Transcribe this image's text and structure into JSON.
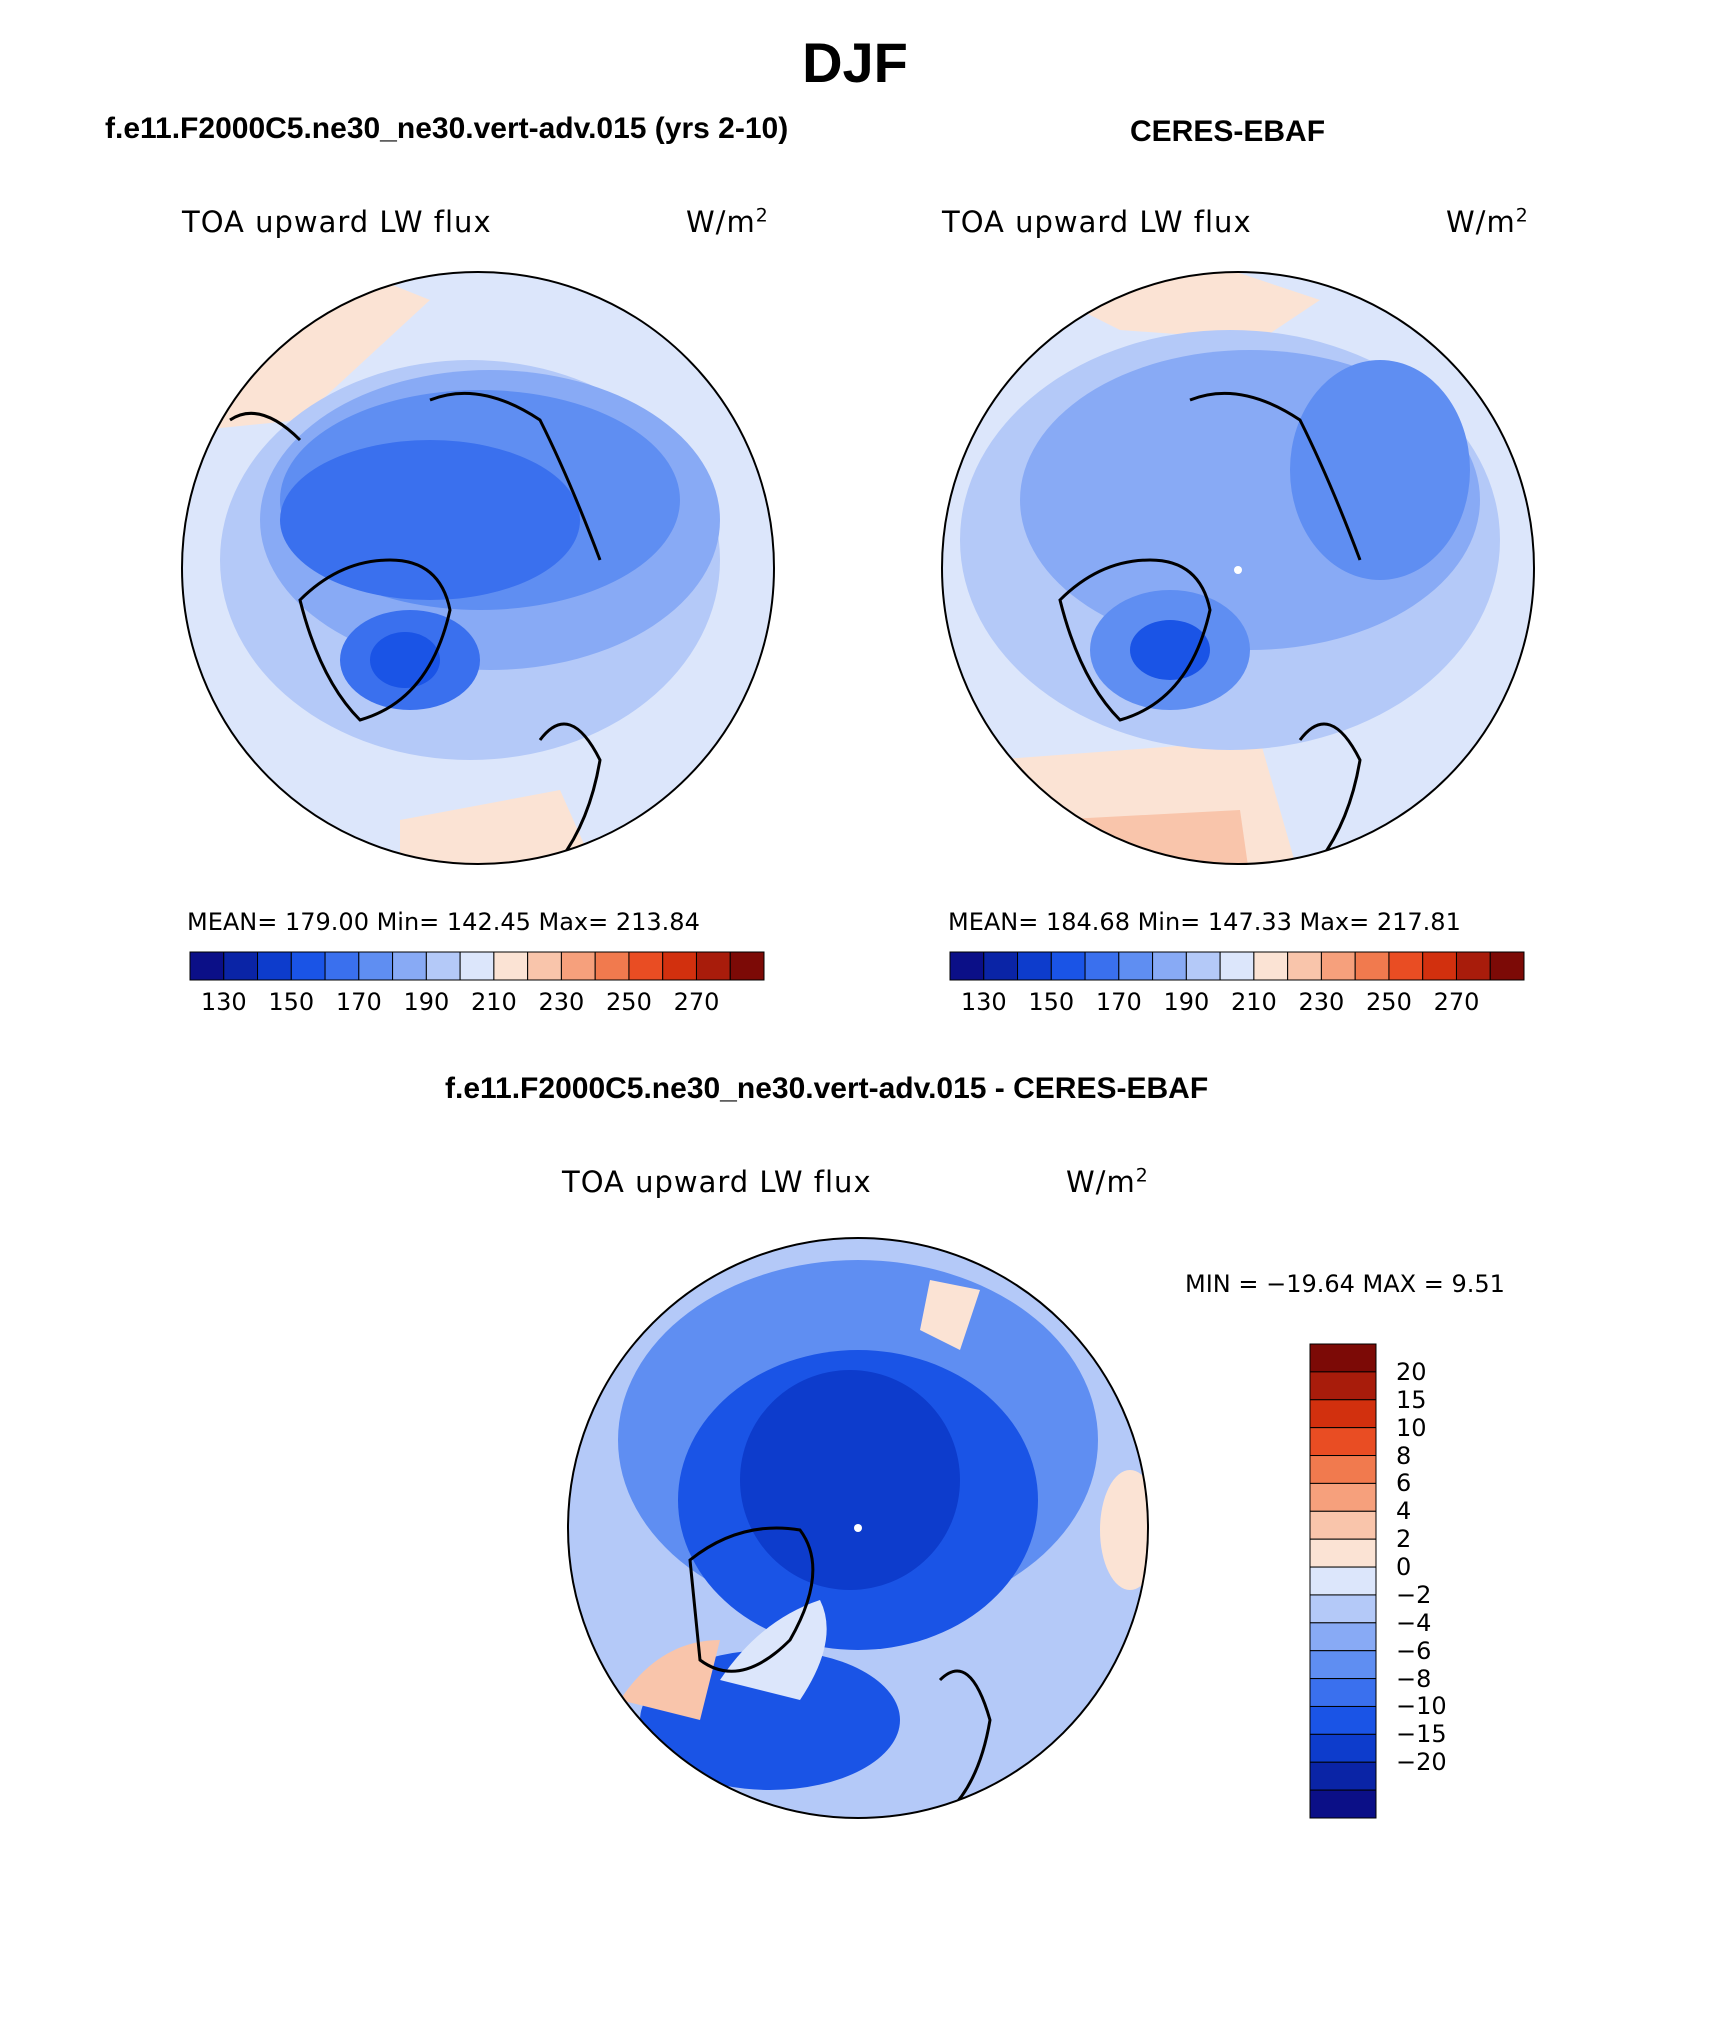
{
  "figure": {
    "title": "DJF"
  },
  "colors": {
    "abs_scale": [
      "#0b0f87",
      "#0a24a6",
      "#0d3ccc",
      "#1a54e6",
      "#3a70ee",
      "#5f8ef2",
      "#88aaf5",
      "#b4c9f8",
      "#dce6fb",
      "#fbe3d4",
      "#f9c5ab",
      "#f6a07c",
      "#f17a4e",
      "#e94d23",
      "#d2300e",
      "#a81c0b",
      "#7c0a06"
    ],
    "diff_scale": [
      "#0b0f87",
      "#0a24a6",
      "#0d3ccc",
      "#1a54e6",
      "#3a70ee",
      "#5f8ef2",
      "#88aaf5",
      "#b4c9f8",
      "#dce6fb",
      "#fbe3d4",
      "#f9c5ab",
      "#f6a07c",
      "#f17a4e",
      "#e94d23",
      "#d2300e",
      "#a81c0b",
      "#7c0a06"
    ]
  },
  "panels": [
    {
      "id": "model",
      "title": "f.e11.F2000C5.ne30_ne30.vert-adv.015 (yrs 2-10)",
      "variable": "TOA upward LW flux",
      "units_base": "W/m",
      "units_exp": "2",
      "stats": "MEAN= 179.00   Min= 142.45   Max= 213.84",
      "ticks": [
        "130",
        "150",
        "170",
        "190",
        "210",
        "230",
        "250",
        "270"
      ]
    },
    {
      "id": "obs",
      "title": "CERES-EBAF",
      "variable": "TOA upward LW flux",
      "units_base": "W/m",
      "units_exp": "2",
      "stats": "MEAN= 184.68   Min= 147.33   Max= 217.81",
      "ticks": [
        "130",
        "150",
        "170",
        "190",
        "210",
        "230",
        "250",
        "270"
      ]
    }
  ],
  "difference": {
    "title": "f.e11.F2000C5.ne30_ne30.vert-adv.015 - CERES-EBAF",
    "variable": "TOA upward LW flux",
    "units_base": "W/m",
    "units_exp": "2",
    "minmax": "MIN = −19.64 MAX =    9.51",
    "ticks": [
      "20",
      "15",
      "10",
      "8",
      "6",
      "4",
      "2",
      "0",
      "−2",
      "−4",
      "−6",
      "−8",
      "−10",
      "−15",
      "−20"
    ]
  }
}
